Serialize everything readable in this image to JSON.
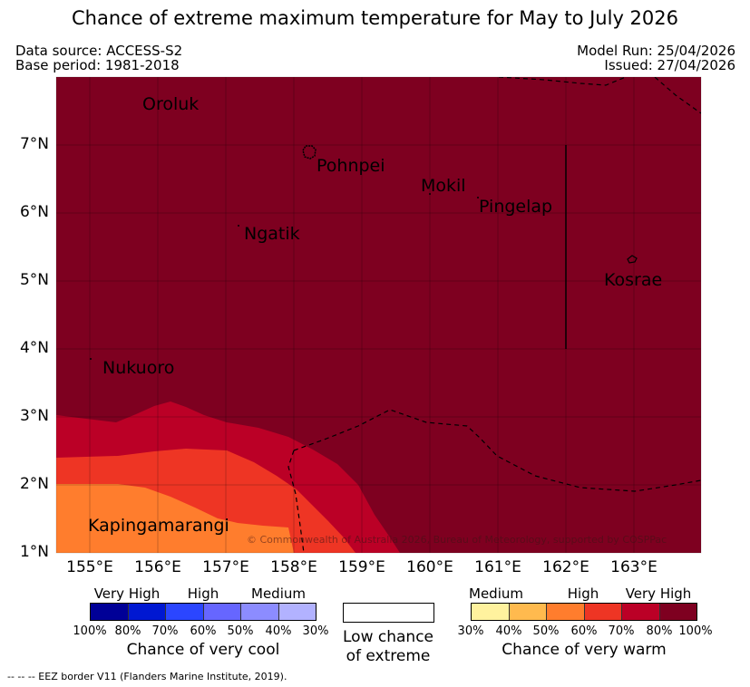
{
  "title": "Chance of extreme maximum temperature for May to July 2026",
  "header": {
    "data_source": "Data source: ACCESS-S2",
    "base_period": "Base period: 1981-2018",
    "model_run": "Model Run: 25/04/2026",
    "issued": "Issued: 27/04/2026"
  },
  "map": {
    "lat_labels": [
      "7°N",
      "6°N",
      "5°N",
      "4°N",
      "3°N",
      "2°N",
      "1°N"
    ],
    "lon_labels": [
      "155°E",
      "156°E",
      "157°E",
      "158°E",
      "159°E",
      "160°E",
      "161°E",
      "162°E",
      "163°E"
    ],
    "places": {
      "oroluk": "Oroluk",
      "pohnpei": "Pohnpei",
      "mokil": "Mokil",
      "pingelap": "Pingelap",
      "ngatik": "Ngatik",
      "kosrae": "Kosrae",
      "nukuoro": "Nukuoro",
      "kapingamarangi": "Kapingamarangi"
    },
    "copyright": "© Commonwealth of Australia 2026, Bureau of Meteorology, supported by COSPPac",
    "colors": {
      "very_high_warm": "#7e0020",
      "high_warm": "#bb0026",
      "medium_high_warm": "#ee3524",
      "high_orange": "#ff7d2d"
    }
  },
  "legend": {
    "cool": {
      "levels": [
        "Very High",
        "High",
        "Medium"
      ],
      "ticks": [
        "100%",
        "80%",
        "70%",
        "60%",
        "50%",
        "40%",
        "30%"
      ],
      "caption": "Chance of very cool",
      "colors": [
        "#000097",
        "#0018d2",
        "#2b46ff",
        "#6666ff",
        "#8c8cff",
        "#b2b2ff"
      ]
    },
    "low": {
      "line1": "Low chance",
      "line2": "of extreme",
      "color": "#ffffff"
    },
    "warm": {
      "levels": [
        "Medium",
        "High",
        "Very High"
      ],
      "ticks": [
        "30%",
        "40%",
        "50%",
        "60%",
        "70%",
        "80%",
        "100%"
      ],
      "caption": "Chance of very warm",
      "colors": [
        "#fff29e",
        "#ffba4e",
        "#ff7d2d",
        "#ee3524",
        "#bb0026",
        "#7e0020"
      ]
    }
  },
  "footnote": "--  --  -- EEZ border V11 (Flanders Marine Institute, 2019)."
}
